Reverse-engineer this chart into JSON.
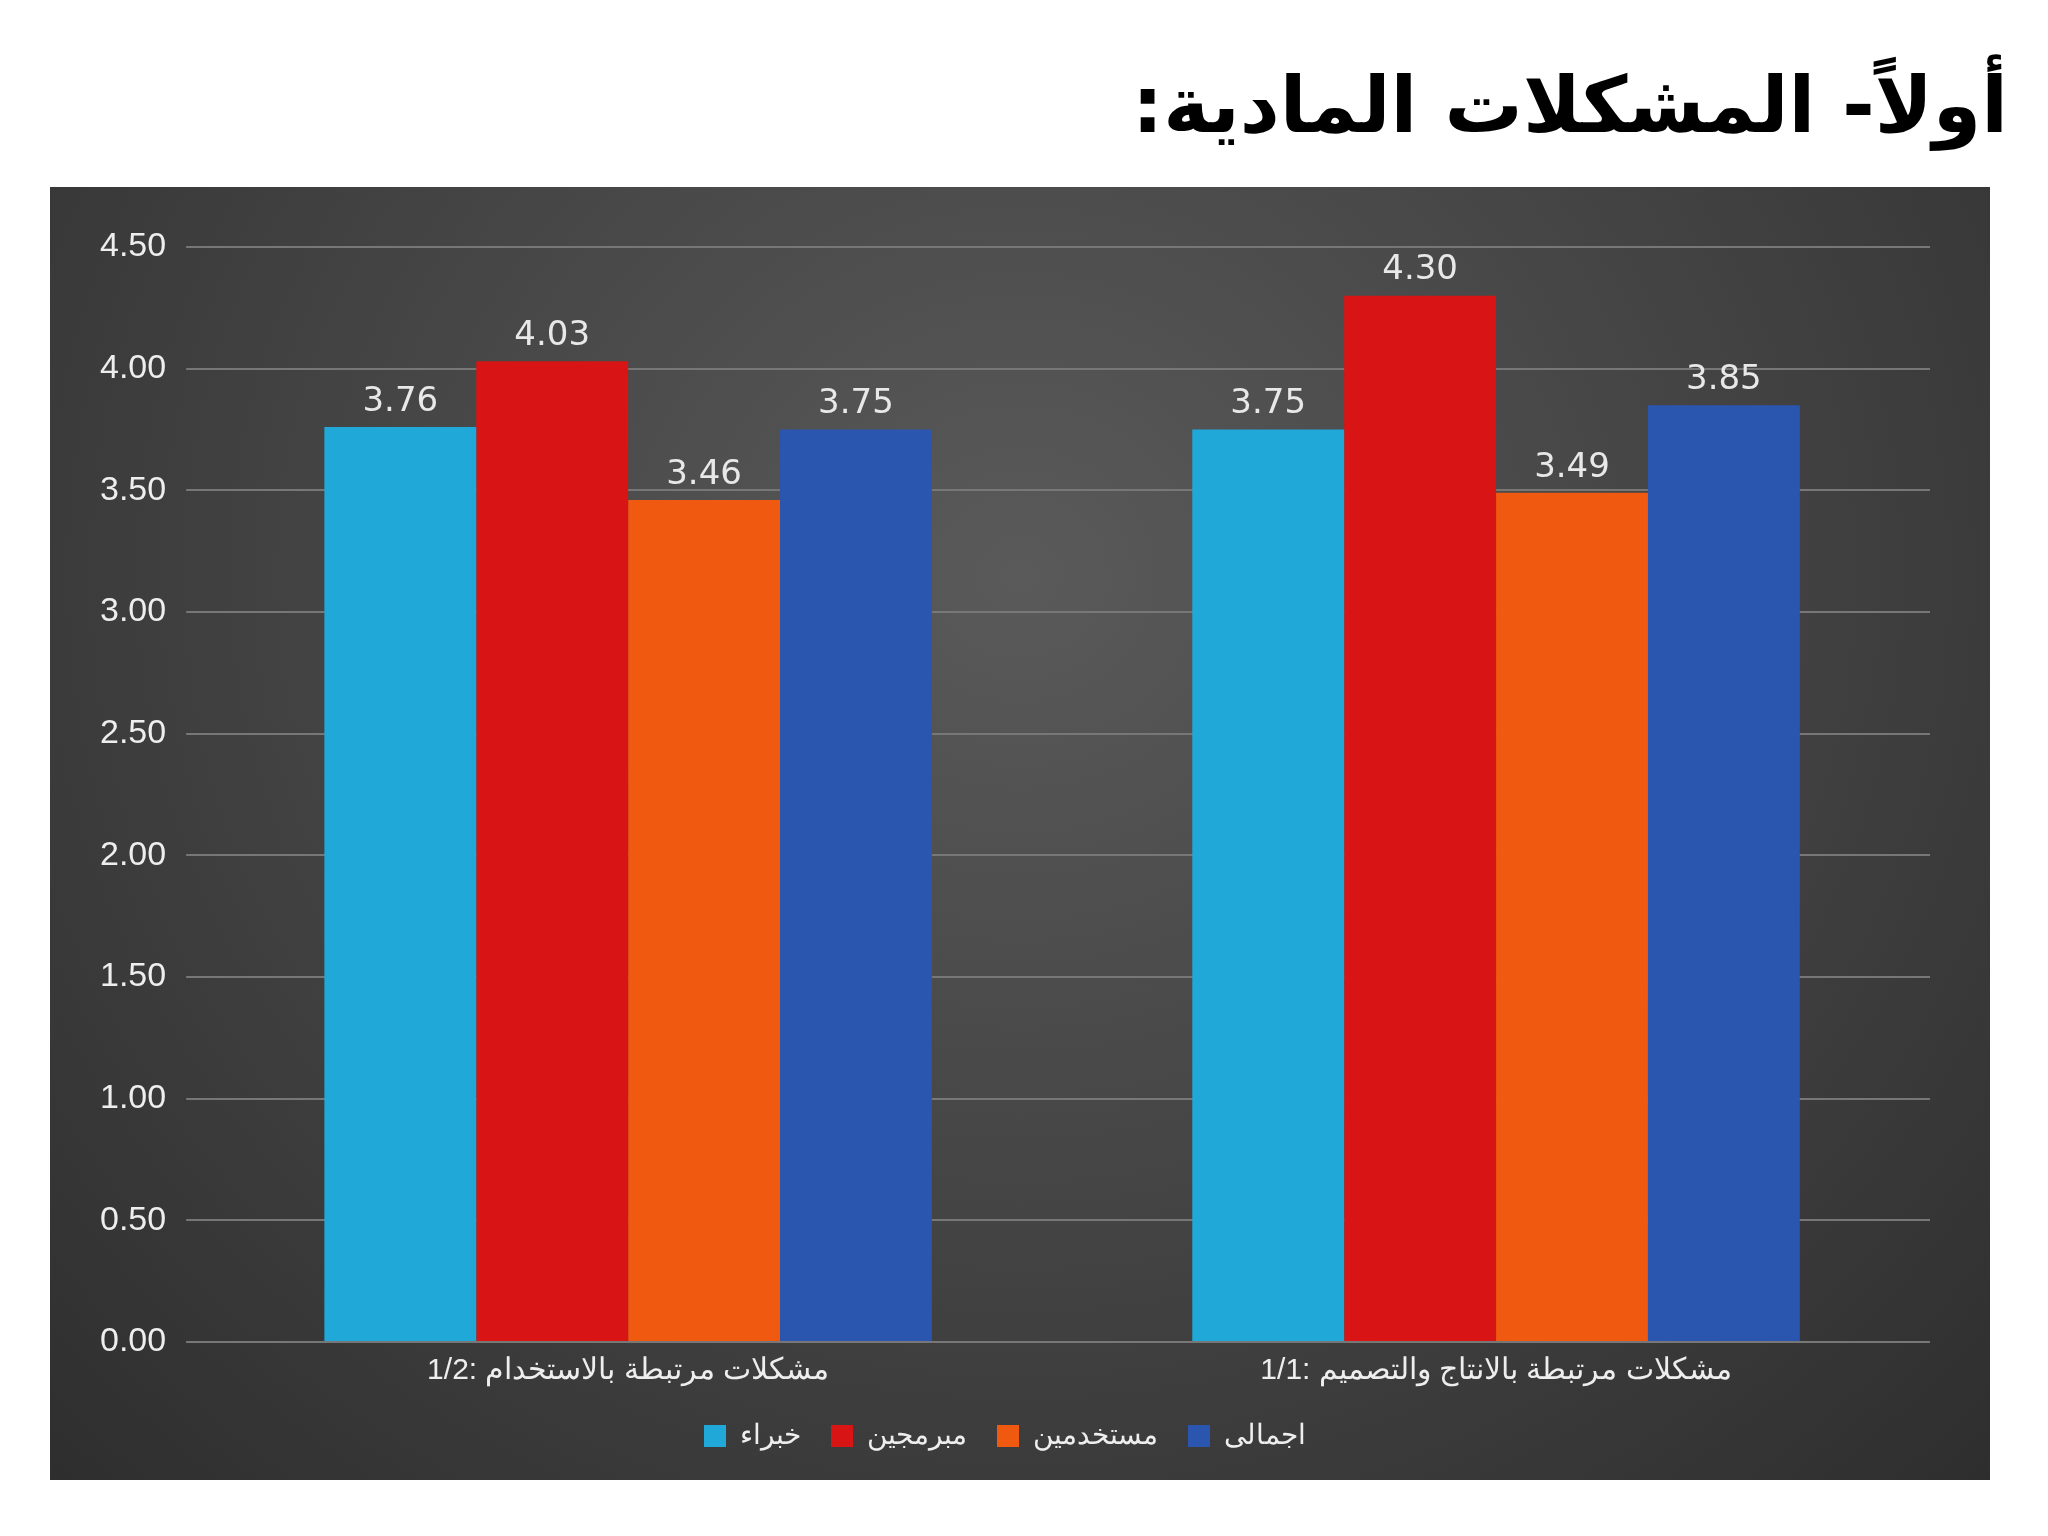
{
  "chart_data": {
    "type": "bar",
    "title": "أولاً- المشكلات المادية:",
    "categories": [
      "1/2: مشكلات مرتبطة بالاستخدام",
      "1/1: مشكلات مرتبطة بالانتاج والتصميم"
    ],
    "series": [
      {
        "name": "خبراء",
        "color": "#1fa8d8",
        "values": [
          3.76,
          3.75
        ]
      },
      {
        "name": "مبرمجين",
        "color": "#d81414",
        "values": [
          4.03,
          4.3
        ]
      },
      {
        "name": "مستخدمين",
        "color": "#f05a10",
        "values": [
          3.46,
          3.49
        ]
      },
      {
        "name": "اجمالى",
        "color": "#2a56b0",
        "values": [
          3.75,
          3.85
        ]
      }
    ],
    "ylim": [
      0,
      4.5
    ],
    "yticks": [
      {
        "value": 0,
        "label": "0.00"
      },
      {
        "value": 0.5,
        "label": "0.50"
      },
      {
        "value": 1,
        "label": "1.00"
      },
      {
        "value": 1.5,
        "label": "1.50"
      },
      {
        "value": 2,
        "label": "2.00"
      },
      {
        "value": 2.5,
        "label": "2.50"
      },
      {
        "value": 3,
        "label": "3.00"
      },
      {
        "value": 3.5,
        "label": "3.50"
      },
      {
        "value": 4,
        "label": "4.00"
      },
      {
        "value": 4.5,
        "label": "4.50"
      }
    ],
    "value_labels": [
      [
        "3.76",
        "3.75"
      ],
      [
        "4.03",
        "4.30"
      ],
      [
        "3.46",
        "3.49"
      ],
      [
        "3.75",
        "3.85"
      ]
    ],
    "grid": "y",
    "legend": "bottom"
  }
}
